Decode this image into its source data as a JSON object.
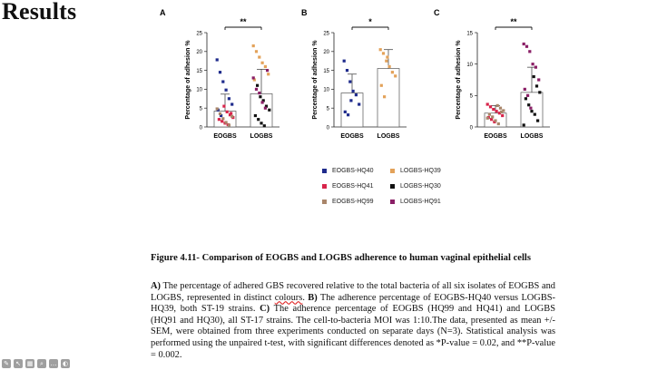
{
  "slide": {
    "title": "Results"
  },
  "colors": {
    "eogbs_hq40": "#1f2b8c",
    "eogbs_hq41": "#d8244a",
    "eogbs_hq99": "#a9866a",
    "logbs_hq39": "#e3a25a",
    "logbs_hq30": "#111111",
    "logbs_hq91": "#8a1f66",
    "bar_fill": "#ffffff",
    "bar_stroke": "#555555"
  },
  "chart_data": [
    {
      "panel": "A",
      "type": "bar",
      "ylabel": "Percentage of adhesion %",
      "ylim": [
        0,
        25
      ],
      "yticks": [
        0,
        5,
        10,
        15,
        20,
        25
      ],
      "categories": [
        "EOGBS",
        "LOGBS"
      ],
      "means": [
        4.2,
        8.8
      ],
      "errors": [
        4.5,
        6.5
      ],
      "significance": "**",
      "points": [
        [
          {
            "v": 17.8,
            "g": "eogbs_hq40"
          },
          {
            "v": 14.5,
            "g": "eogbs_hq40"
          },
          {
            "v": 12,
            "g": "eogbs_hq40"
          },
          {
            "v": 9.8,
            "g": "eogbs_hq40"
          },
          {
            "v": 7.5,
            "g": "eogbs_hq40"
          },
          {
            "v": 6,
            "g": "eogbs_hq40"
          },
          {
            "v": 4.5,
            "g": "eogbs_hq40"
          },
          {
            "v": 3,
            "g": "eogbs_hq40"
          },
          {
            "v": 5.5,
            "g": "eogbs_hq41"
          },
          {
            "v": 4,
            "g": "eogbs_hq41"
          },
          {
            "v": 3.2,
            "g": "eogbs_hq41"
          },
          {
            "v": 2.5,
            "g": "eogbs_hq41"
          },
          {
            "v": 2,
            "g": "eogbs_hq41"
          },
          {
            "v": 1.5,
            "g": "eogbs_hq41"
          },
          {
            "v": 1,
            "g": "eogbs_hq41"
          },
          {
            "v": 0.6,
            "g": "eogbs_hq41"
          },
          {
            "v": 3.6,
            "g": "eogbs_hq41"
          },
          {
            "v": 4.8,
            "g": "eogbs_hq99"
          },
          {
            "v": 3.5,
            "g": "eogbs_hq99"
          },
          {
            "v": 2.2,
            "g": "eogbs_hq99"
          },
          {
            "v": 1.2,
            "g": "eogbs_hq99"
          },
          {
            "v": 0.5,
            "g": "eogbs_hq99"
          },
          {
            "v": 2.8,
            "g": "eogbs_hq99"
          }
        ],
        [
          {
            "v": 21.5,
            "g": "logbs_hq39"
          },
          {
            "v": 20,
            "g": "logbs_hq39"
          },
          {
            "v": 18.5,
            "g": "logbs_hq39"
          },
          {
            "v": 17,
            "g": "logbs_hq39"
          },
          {
            "v": 16,
            "g": "logbs_hq39"
          },
          {
            "v": 14,
            "g": "logbs_hq39"
          },
          {
            "v": 12.5,
            "g": "logbs_hq39"
          },
          {
            "v": 11,
            "g": "logbs_hq30"
          },
          {
            "v": 8,
            "g": "logbs_hq30"
          },
          {
            "v": 7,
            "g": "logbs_hq30"
          },
          {
            "v": 5.5,
            "g": "logbs_hq30"
          },
          {
            "v": 4.5,
            "g": "logbs_hq30"
          },
          {
            "v": 3,
            "g": "logbs_hq30"
          },
          {
            "v": 2,
            "g": "logbs_hq30"
          },
          {
            "v": 1,
            "g": "logbs_hq30"
          },
          {
            "v": 0.3,
            "g": "logbs_hq30"
          },
          {
            "v": 15,
            "g": "logbs_hq91"
          },
          {
            "v": 13,
            "g": "logbs_hq91"
          },
          {
            "v": 10,
            "g": "logbs_hq91"
          },
          {
            "v": 9,
            "g": "logbs_hq91"
          },
          {
            "v": 6.5,
            "g": "logbs_hq91"
          },
          {
            "v": 5,
            "g": "logbs_hq91"
          }
        ]
      ]
    },
    {
      "panel": "B",
      "type": "bar",
      "ylabel": "Percentage of adhesion %",
      "ylim": [
        0,
        25
      ],
      "yticks": [
        0,
        5,
        10,
        15,
        20,
        25
      ],
      "categories": [
        "EOGBS",
        "LOGBS"
      ],
      "means": [
        9,
        15.5
      ],
      "errors": [
        5,
        5
      ],
      "significance": "*",
      "points": [
        [
          {
            "v": 17.5,
            "g": "eogbs_hq40"
          },
          {
            "v": 15,
            "g": "eogbs_hq40"
          },
          {
            "v": 12,
            "g": "eogbs_hq40"
          },
          {
            "v": 9.5,
            "g": "eogbs_hq40"
          },
          {
            "v": 8.5,
            "g": "eogbs_hq40"
          },
          {
            "v": 6,
            "g": "eogbs_hq40"
          },
          {
            "v": 4,
            "g": "eogbs_hq40"
          },
          {
            "v": 3.2,
            "g": "eogbs_hq40"
          },
          {
            "v": 7,
            "g": "eogbs_hq40"
          }
        ],
        [
          {
            "v": 20.5,
            "g": "logbs_hq39"
          },
          {
            "v": 19.5,
            "g": "logbs_hq39"
          },
          {
            "v": 17.5,
            "g": "logbs_hq39"
          },
          {
            "v": 16,
            "g": "logbs_hq39"
          },
          {
            "v": 14.5,
            "g": "logbs_hq39"
          },
          {
            "v": 13.5,
            "g": "logbs_hq39"
          },
          {
            "v": 11,
            "g": "logbs_hq39"
          },
          {
            "v": 8,
            "g": "logbs_hq39"
          },
          {
            "v": 18.5,
            "g": "logbs_hq39"
          }
        ]
      ]
    },
    {
      "panel": "C",
      "type": "bar",
      "ylabel": "Percentage of adhesion %",
      "ylim": [
        0,
        15
      ],
      "yticks": [
        0,
        5,
        10,
        15
      ],
      "categories": [
        "EOGBS",
        "LOGBS"
      ],
      "means": [
        2.2,
        5.5
      ],
      "errors": [
        1.2,
        4
      ],
      "significance": "**",
      "points": [
        [
          {
            "v": 3.6,
            "g": "eogbs_hq41"
          },
          {
            "v": 3.2,
            "g": "eogbs_hq41"
          },
          {
            "v": 2.8,
            "g": "eogbs_hq41"
          },
          {
            "v": 2.5,
            "g": "eogbs_hq41"
          },
          {
            "v": 2.2,
            "g": "eogbs_hq41"
          },
          {
            "v": 1.8,
            "g": "eogbs_hq41"
          },
          {
            "v": 1.5,
            "g": "eogbs_hq41"
          },
          {
            "v": 1.2,
            "g": "eogbs_hq41"
          },
          {
            "v": 0.8,
            "g": "eogbs_hq41"
          },
          {
            "v": 3.4,
            "g": "eogbs_hq99"
          },
          {
            "v": 3,
            "g": "eogbs_hq99"
          },
          {
            "v": 2.6,
            "g": "eogbs_hq99"
          },
          {
            "v": 2,
            "g": "eogbs_hq99"
          },
          {
            "v": 1.6,
            "g": "eogbs_hq99"
          },
          {
            "v": 1,
            "g": "eogbs_hq99"
          },
          {
            "v": 0.5,
            "g": "eogbs_hq99"
          },
          {
            "v": 2.4,
            "g": "eogbs_hq99"
          },
          {
            "v": 1.4,
            "g": "eogbs_hq99"
          }
        ],
        [
          {
            "v": 13.2,
            "g": "logbs_hq91"
          },
          {
            "v": 12.8,
            "g": "logbs_hq91"
          },
          {
            "v": 12,
            "g": "logbs_hq91"
          },
          {
            "v": 10,
            "g": "logbs_hq91"
          },
          {
            "v": 9.5,
            "g": "logbs_hq91"
          },
          {
            "v": 7.5,
            "g": "logbs_hq91"
          },
          {
            "v": 6,
            "g": "logbs_hq91"
          },
          {
            "v": 5,
            "g": "logbs_hq91"
          },
          {
            "v": 3,
            "g": "logbs_hq91"
          },
          {
            "v": 8,
            "g": "logbs_hq30"
          },
          {
            "v": 6.5,
            "g": "logbs_hq30"
          },
          {
            "v": 5.5,
            "g": "logbs_hq30"
          },
          {
            "v": 4.5,
            "g": "logbs_hq30"
          },
          {
            "v": 3.5,
            "g": "logbs_hq30"
          },
          {
            "v": 2.5,
            "g": "logbs_hq30"
          },
          {
            "v": 2,
            "g": "logbs_hq30"
          },
          {
            "v": 1,
            "g": "logbs_hq30"
          },
          {
            "v": 0.3,
            "g": "logbs_hq30"
          }
        ]
      ]
    }
  ],
  "legend": [
    {
      "label": "EOGBS-HQ40",
      "key": "eogbs_hq40"
    },
    {
      "label": "LOGBS-HQ39",
      "key": "logbs_hq39"
    },
    {
      "label": "EOGBS-HQ41",
      "key": "eogbs_hq41"
    },
    {
      "label": "LOGBS-HQ30",
      "key": "logbs_hq30"
    },
    {
      "label": "EOGBS-HQ99",
      "key": "eogbs_hq99"
    },
    {
      "label": "LOGBS-HQ91",
      "key": "logbs_hq91"
    }
  ],
  "caption": {
    "title": "Figure 4.11- Comparison of EOGBS and LOGBS adherence to human vaginal epithelial cells",
    "label_a": "A)",
    "text_a1": " The percentage of adhered GBS recovered relative to the total bacteria of all six isolates of EOGBS and LOGBS, represented in distinct ",
    "colours_word": "colours",
    "text_a2": ". ",
    "label_b": "B)",
    "text_b": " The adherence percentage of EOGBS-HQ40 versus LOGBS-HQ39, both ST-19 strains. ",
    "label_c": "C)",
    "text_c": " The adherence percentage of EOGBS (HQ99 and HQ41) and LOGBS (HQ91 and HQ30), all ST-17 strains. The cell-to-bacteria MOI was 1:10.The data, presented as mean +/- SEM, were obtained from three experiments conducted on separate days (N=3). Statistical analysis was performed using the unpaired t-test, with significant differences denoted as *P-value = 0.02, and **P-value = 0.002."
  },
  "toolbar": [
    "pen-icon",
    "pointer-icon",
    "slides-icon",
    "zoom-icon",
    "more-icon",
    "shape-icon"
  ]
}
